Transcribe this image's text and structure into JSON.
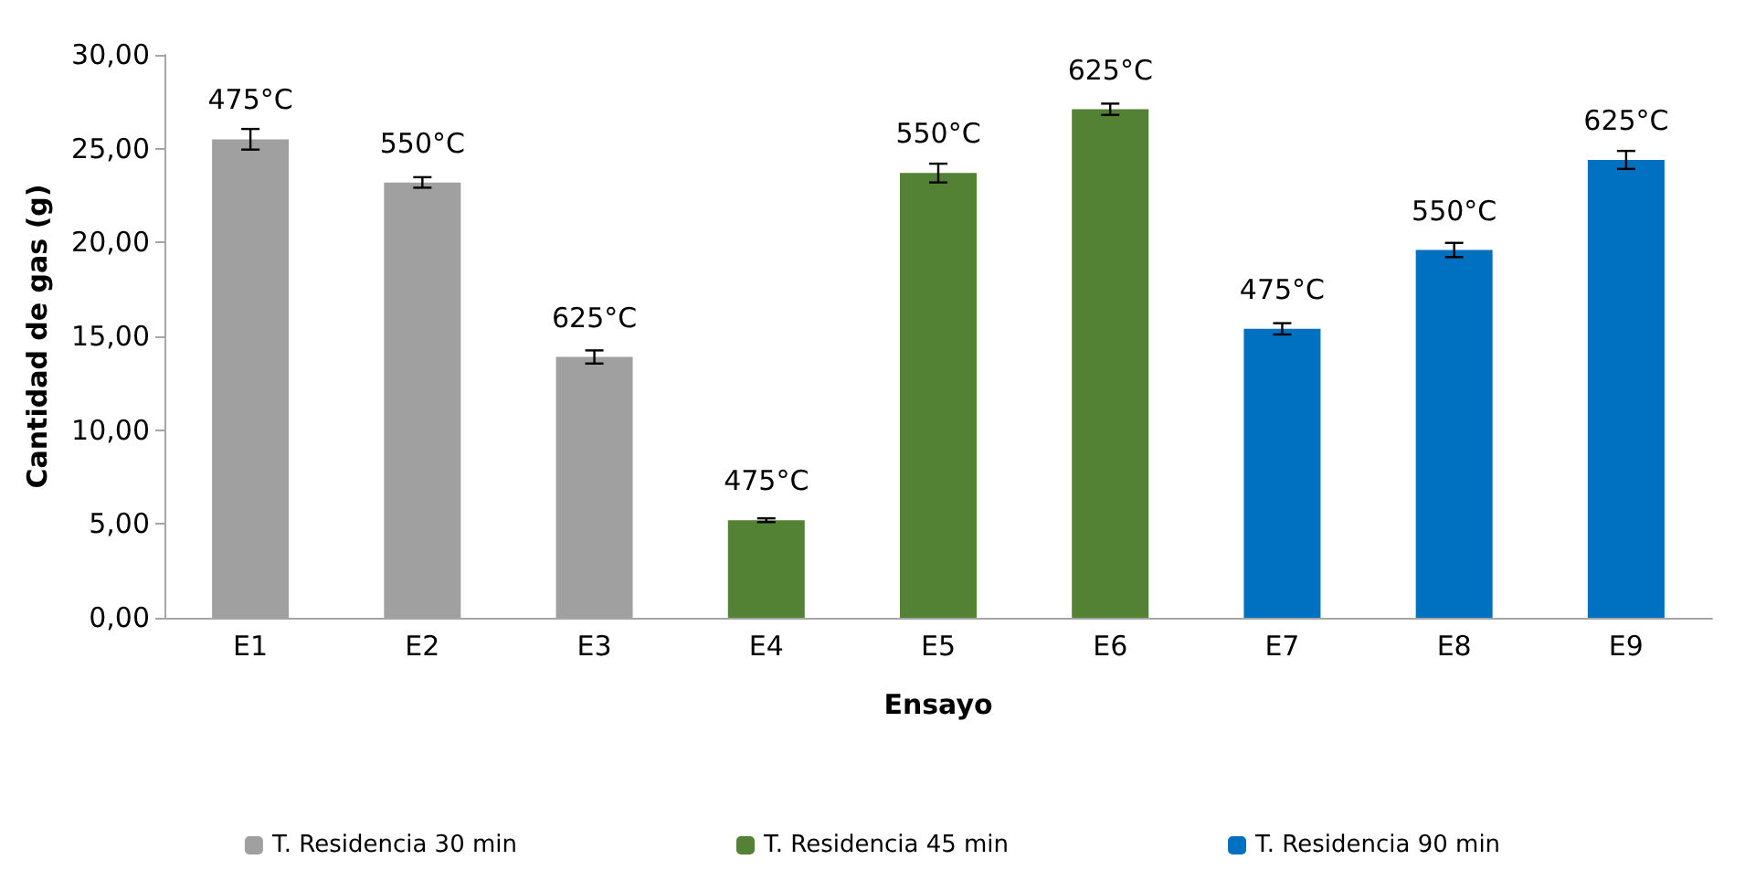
{
  "chart_data": {
    "type": "bar",
    "xlabel": "Ensayo",
    "ylabel": "Cantidad de gas (g)",
    "categories": [
      "E1",
      "E2",
      "E3",
      "E4",
      "E5",
      "E6",
      "E7",
      "E8",
      "E9"
    ],
    "series": [
      {
        "name": "T. Residencia 30 min",
        "color": "#a0a0a0",
        "values": [
          25.5,
          23.2,
          13.9,
          null,
          null,
          null,
          null,
          null,
          null
        ],
        "errors": [
          0.55,
          0.28,
          0.35,
          null,
          null,
          null,
          null,
          null,
          null
        ]
      },
      {
        "name": "T. Residencia 45 min",
        "color": "#548235",
        "values": [
          null,
          null,
          null,
          5.2,
          23.7,
          27.1,
          null,
          null,
          null
        ],
        "errors": [
          null,
          null,
          null,
          0.1,
          0.5,
          0.3,
          null,
          null,
          null
        ]
      },
      {
        "name": "T. Residencia 90 min",
        "color": "#0070c0",
        "values": [
          null,
          null,
          null,
          null,
          null,
          null,
          15.4,
          19.6,
          24.4
        ],
        "errors": [
          null,
          null,
          null,
          null,
          null,
          null,
          0.3,
          0.38,
          0.48
        ]
      }
    ],
    "annotations": [
      {
        "text": "475°C",
        "x": "E1",
        "y": 25.5
      },
      {
        "text": "550°C",
        "x": "E2",
        "y": 23.2
      },
      {
        "text": "625°C",
        "x": "E3",
        "y": 13.9
      },
      {
        "text": "475°C",
        "x": "E4",
        "y": 5.2
      },
      {
        "text": "550°C",
        "x": "E5",
        "y": 23.7
      },
      {
        "text": "625°C",
        "x": "E6",
        "y": 27.1
      },
      {
        "text": "475°C",
        "x": "E7",
        "y": 15.4
      },
      {
        "text": "550°C",
        "x": "E8",
        "y": 19.6
      },
      {
        "text": "625°C",
        "x": "E9",
        "y": 24.4
      }
    ],
    "ylim": [
      0,
      30
    ],
    "yticks": [
      {
        "value": 0,
        "label": "0,00"
      },
      {
        "value": 5,
        "label": "5,00"
      },
      {
        "value": 10,
        "label": "10,00"
      },
      {
        "value": 15,
        "label": "15,00"
      },
      {
        "value": 20,
        "label": "20,00"
      },
      {
        "value": 25,
        "label": "25,00"
      },
      {
        "value": 30,
        "label": "30,00"
      }
    ],
    "grid": false,
    "legend": "bottom"
  }
}
